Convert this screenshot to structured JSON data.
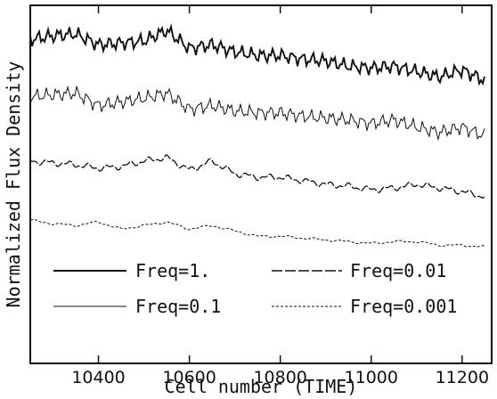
{
  "chart_data": {
    "type": "line",
    "xlabel": "Cell number (TIME)",
    "ylabel": "Normalized Flux Density",
    "xlim": [
      10250,
      11265.0
    ],
    "ylim": [
      0,
      1
    ],
    "x_ticks": [
      10400,
      10600,
      10800,
      11000,
      11200
    ],
    "y_ticks_labeled": false,
    "grid": false,
    "legend_position": "bottom (two columns)",
    "series": [
      {
        "name": "Freq=1.",
        "style": "solid-thick",
        "x": [
          10250,
          10300,
          10350,
          10400,
          10450,
          10500,
          10550,
          10600,
          10650,
          10700,
          10750,
          10800,
          10850,
          10900,
          10950,
          11000,
          11050,
          11100,
          11150,
          11200,
          11250
        ],
        "y": [
          0.905,
          0.915,
          0.92,
          0.89,
          0.895,
          0.9,
          0.93,
          0.88,
          0.89,
          0.87,
          0.86,
          0.86,
          0.85,
          0.845,
          0.83,
          0.825,
          0.83,
          0.815,
          0.8,
          0.82,
          0.79
        ]
      },
      {
        "name": "Freq=0.1",
        "style": "solid-thin",
        "x": [
          10250,
          10300,
          10350,
          10400,
          10450,
          10500,
          10550,
          10600,
          10650,
          10700,
          10750,
          10800,
          10850,
          10900,
          10950,
          11000,
          11050,
          11100,
          11150,
          11200,
          11250
        ],
        "y": [
          0.745,
          0.75,
          0.755,
          0.72,
          0.73,
          0.74,
          0.755,
          0.71,
          0.72,
          0.705,
          0.7,
          0.7,
          0.69,
          0.685,
          0.68,
          0.67,
          0.68,
          0.66,
          0.645,
          0.66,
          0.635
        ]
      },
      {
        "name": "Freq=0.01",
        "style": "long-dash",
        "x": [
          10250,
          10300,
          10350,
          10400,
          10450,
          10500,
          10550,
          10600,
          10650,
          10700,
          10750,
          10800,
          10850,
          10900,
          10950,
          11000,
          11050,
          11100,
          11150,
          11200,
          11250
        ],
        "y": [
          0.565,
          0.56,
          0.555,
          0.545,
          0.55,
          0.565,
          0.575,
          0.54,
          0.565,
          0.53,
          0.52,
          0.52,
          0.51,
          0.5,
          0.495,
          0.485,
          0.49,
          0.5,
          0.49,
          0.48,
          0.465
        ]
      },
      {
        "name": "Freq=0.001",
        "style": "short-dash",
        "x": [
          10250,
          10300,
          10350,
          10400,
          10450,
          10500,
          10550,
          10600,
          10650,
          10700,
          10750,
          10800,
          10850,
          10900,
          10950,
          11000,
          11050,
          11100,
          11150,
          11200,
          11250
        ],
        "y": [
          0.4,
          0.39,
          0.385,
          0.395,
          0.375,
          0.385,
          0.395,
          0.375,
          0.385,
          0.37,
          0.355,
          0.355,
          0.35,
          0.345,
          0.34,
          0.335,
          0.34,
          0.34,
          0.33,
          0.33,
          0.325
        ]
      }
    ]
  }
}
